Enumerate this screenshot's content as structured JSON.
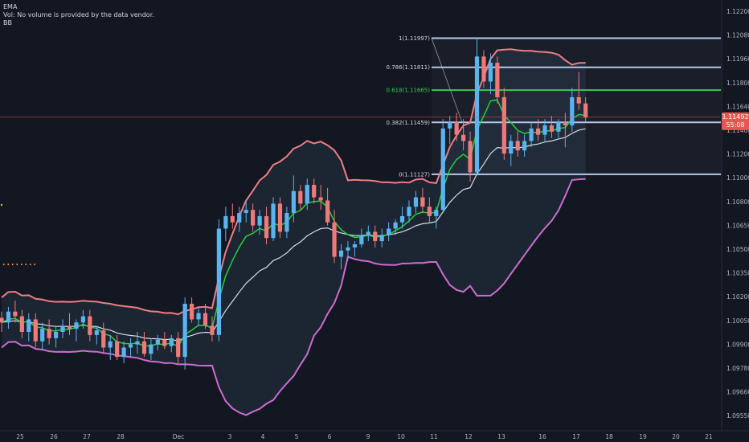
{
  "legend": {
    "ema": "EMA",
    "vol": "Vol: No volume is provided by the data vendor.",
    "bb": "BB"
  },
  "chart_data": {
    "type": "candlestick",
    "x_labels": [
      "25",
      "26",
      "27",
      "28",
      "Dec",
      "3",
      "4",
      "5",
      "6",
      "9",
      "10",
      "11",
      "12",
      "13",
      "16",
      "17",
      "18",
      "19",
      "20",
      "21"
    ],
    "y_ticks": [
      "1.12200",
      "1.12080",
      "1.11960",
      "1.11800",
      "1.11640",
      "1.11400",
      "1.11200",
      "1.11000",
      "1.10800",
      "1.10650",
      "1.10500",
      "1.10350",
      "1.10200",
      "1.10050",
      "1.09900",
      "1.09780",
      "1.09660",
      "1.09550"
    ],
    "ylim": [
      1.0955,
      1.122
    ],
    "current_price": "1.11492",
    "countdown": "55:08",
    "fibonacci": [
      {
        "level": "1(1.11997)",
        "price": 1.11997
      },
      {
        "level": "0.786(1.11811)",
        "price": 1.11811
      },
      {
        "level": "0.618(1.11665)",
        "price": 1.11665
      },
      {
        "level": "0.382(1.11459)",
        "price": 1.11459
      },
      {
        "level": "0(1.11127)",
        "price": 1.11127
      }
    ],
    "candles": [
      {
        "o": 1.1021,
        "h": 1.1025,
        "l": 1.1012,
        "c": 1.1018
      },
      {
        "o": 1.1018,
        "h": 1.1028,
        "l": 1.1014,
        "c": 1.1025
      },
      {
        "o": 1.1025,
        "h": 1.1032,
        "l": 1.1018,
        "c": 1.1022
      },
      {
        "o": 1.1022,
        "h": 1.1026,
        "l": 1.1008,
        "c": 1.1012
      },
      {
        "o": 1.1012,
        "h": 1.1024,
        "l": 1.1006,
        "c": 1.102
      },
      {
        "o": 1.102,
        "h": 1.1024,
        "l": 1.1002,
        "c": 1.1006
      },
      {
        "o": 1.1006,
        "h": 1.1018,
        "l": 1.1,
        "c": 1.1014
      },
      {
        "o": 1.1014,
        "h": 1.102,
        "l": 1.1004,
        "c": 1.1008
      },
      {
        "o": 1.1008,
        "h": 1.1016,
        "l": 1.1002,
        "c": 1.1012
      },
      {
        "o": 1.1012,
        "h": 1.102,
        "l": 1.1008,
        "c": 1.1016
      },
      {
        "o": 1.1016,
        "h": 1.1024,
        "l": 1.101,
        "c": 1.1014
      },
      {
        "o": 1.1014,
        "h": 1.102,
        "l": 1.1006,
        "c": 1.1018
      },
      {
        "o": 1.1018,
        "h": 1.1026,
        "l": 1.1014,
        "c": 1.1022
      },
      {
        "o": 1.1022,
        "h": 1.1026,
        "l": 1.1006,
        "c": 1.101
      },
      {
        "o": 1.101,
        "h": 1.1016,
        "l": 1.1004,
        "c": 1.1013
      },
      {
        "o": 1.1013,
        "h": 1.1018,
        "l": 1.0998,
        "c": 1.1002
      },
      {
        "o": 1.1002,
        "h": 1.101,
        "l": 1.0994,
        "c": 1.1006
      },
      {
        "o": 1.1006,
        "h": 1.101,
        "l": 1.0994,
        "c": 1.0996
      },
      {
        "o": 1.0996,
        "h": 1.1006,
        "l": 1.0992,
        "c": 1.1002
      },
      {
        "o": 1.1002,
        "h": 1.1008,
        "l": 1.0996,
        "c": 1.1004
      },
      {
        "o": 1.1004,
        "h": 1.1012,
        "l": 1.0998,
        "c": 1.1006
      },
      {
        "o": 1.1006,
        "h": 1.1012,
        "l": 1.0996,
        "c": 1.0998
      },
      {
        "o": 1.0998,
        "h": 1.1008,
        "l": 1.0994,
        "c": 1.1004
      },
      {
        "o": 1.1004,
        "h": 1.101,
        "l": 1.1,
        "c": 1.1007
      },
      {
        "o": 1.1007,
        "h": 1.1012,
        "l": 1.1001,
        "c": 1.1003
      },
      {
        "o": 1.1003,
        "h": 1.101,
        "l": 1.0999,
        "c": 1.1008
      },
      {
        "o": 1.1008,
        "h": 1.1012,
        "l": 1.0992,
        "c": 1.0996
      },
      {
        "o": 1.0996,
        "h": 1.1034,
        "l": 1.0988,
        "c": 1.103
      },
      {
        "o": 1.103,
        "h": 1.1034,
        "l": 1.1018,
        "c": 1.102
      },
      {
        "o": 1.102,
        "h": 1.1028,
        "l": 1.1016,
        "c": 1.1024
      },
      {
        "o": 1.1024,
        "h": 1.103,
        "l": 1.1014,
        "c": 1.1016
      },
      {
        "o": 1.1016,
        "h": 1.1022,
        "l": 1.1006,
        "c": 1.101
      },
      {
        "o": 1.101,
        "h": 1.1084,
        "l": 1.1006,
        "c": 1.1078
      },
      {
        "o": 1.1078,
        "h": 1.1092,
        "l": 1.107,
        "c": 1.1086
      },
      {
        "o": 1.1086,
        "h": 1.1094,
        "l": 1.1078,
        "c": 1.1082
      },
      {
        "o": 1.1082,
        "h": 1.1092,
        "l": 1.1076,
        "c": 1.1088
      },
      {
        "o": 1.1088,
        "h": 1.1096,
        "l": 1.1082,
        "c": 1.109
      },
      {
        "o": 1.109,
        "h": 1.1094,
        "l": 1.1076,
        "c": 1.108
      },
      {
        "o": 1.108,
        "h": 1.109,
        "l": 1.1074,
        "c": 1.1086
      },
      {
        "o": 1.1086,
        "h": 1.1092,
        "l": 1.1068,
        "c": 1.1072
      },
      {
        "o": 1.1072,
        "h": 1.1098,
        "l": 1.107,
        "c": 1.1094
      },
      {
        "o": 1.1094,
        "h": 1.1098,
        "l": 1.1072,
        "c": 1.1076
      },
      {
        "o": 1.1076,
        "h": 1.1092,
        "l": 1.1072,
        "c": 1.1088
      },
      {
        "o": 1.1088,
        "h": 1.1112,
        "l": 1.1082,
        "c": 1.1102
      },
      {
        "o": 1.1102,
        "h": 1.1106,
        "l": 1.109,
        "c": 1.1094
      },
      {
        "o": 1.1094,
        "h": 1.111,
        "l": 1.109,
        "c": 1.1106
      },
      {
        "o": 1.1106,
        "h": 1.111,
        "l": 1.1094,
        "c": 1.1098
      },
      {
        "o": 1.1098,
        "h": 1.1106,
        "l": 1.109,
        "c": 1.1096
      },
      {
        "o": 1.1096,
        "h": 1.1104,
        "l": 1.108,
        "c": 1.1082
      },
      {
        "o": 1.1082,
        "h": 1.109,
        "l": 1.1056,
        "c": 1.106
      },
      {
        "o": 1.106,
        "h": 1.1068,
        "l": 1.1052,
        "c": 1.1064
      },
      {
        "o": 1.1064,
        "h": 1.107,
        "l": 1.1058,
        "c": 1.1066
      },
      {
        "o": 1.1066,
        "h": 1.107,
        "l": 1.106,
        "c": 1.1068
      },
      {
        "o": 1.1068,
        "h": 1.1078,
        "l": 1.1066,
        "c": 1.1074
      },
      {
        "o": 1.1074,
        "h": 1.108,
        "l": 1.107,
        "c": 1.1076
      },
      {
        "o": 1.1076,
        "h": 1.108,
        "l": 1.1066,
        "c": 1.107
      },
      {
        "o": 1.107,
        "h": 1.1078,
        "l": 1.1066,
        "c": 1.1074
      },
      {
        "o": 1.1074,
        "h": 1.1082,
        "l": 1.107,
        "c": 1.1078
      },
      {
        "o": 1.1078,
        "h": 1.1084,
        "l": 1.1074,
        "c": 1.1082
      },
      {
        "o": 1.1082,
        "h": 1.1092,
        "l": 1.1078,
        "c": 1.1086
      },
      {
        "o": 1.1086,
        "h": 1.1096,
        "l": 1.1082,
        "c": 1.1092
      },
      {
        "o": 1.1092,
        "h": 1.1102,
        "l": 1.1088,
        "c": 1.1098
      },
      {
        "o": 1.1098,
        "h": 1.1104,
        "l": 1.1088,
        "c": 1.1092
      },
      {
        "o": 1.1092,
        "h": 1.1098,
        "l": 1.1082,
        "c": 1.1086
      },
      {
        "o": 1.1086,
        "h": 1.1092,
        "l": 1.1078,
        "c": 1.109
      },
      {
        "o": 1.109,
        "h": 1.1148,
        "l": 1.1088,
        "c": 1.1142
      },
      {
        "o": 1.1142,
        "h": 1.115,
        "l": 1.1132,
        "c": 1.1146
      },
      {
        "o": 1.1146,
        "h": 1.1152,
        "l": 1.1134,
        "c": 1.1138
      },
      {
        "o": 1.1138,
        "h": 1.1148,
        "l": 1.1128,
        "c": 1.1134
      },
      {
        "o": 1.1134,
        "h": 1.114,
        "l": 1.1108,
        "c": 1.1114
      },
      {
        "o": 1.1114,
        "h": 1.12,
        "l": 1.1112,
        "c": 1.1188
      },
      {
        "o": 1.1188,
        "h": 1.1192,
        "l": 1.1168,
        "c": 1.1172
      },
      {
        "o": 1.1172,
        "h": 1.119,
        "l": 1.1164,
        "c": 1.1184
      },
      {
        "o": 1.1184,
        "h": 1.1188,
        "l": 1.1158,
        "c": 1.1162
      },
      {
        "o": 1.1162,
        "h": 1.1168,
        "l": 1.1122,
        "c": 1.1126
      },
      {
        "o": 1.1126,
        "h": 1.1138,
        "l": 1.1118,
        "c": 1.1134
      },
      {
        "o": 1.1134,
        "h": 1.114,
        "l": 1.1124,
        "c": 1.1128
      },
      {
        "o": 1.1128,
        "h": 1.1138,
        "l": 1.1124,
        "c": 1.1134
      },
      {
        "o": 1.1134,
        "h": 1.1146,
        "l": 1.113,
        "c": 1.1142
      },
      {
        "o": 1.1142,
        "h": 1.1148,
        "l": 1.1134,
        "c": 1.1138
      },
      {
        "o": 1.1138,
        "h": 1.1148,
        "l": 1.1134,
        "c": 1.1144
      },
      {
        "o": 1.1144,
        "h": 1.115,
        "l": 1.1136,
        "c": 1.114
      },
      {
        "o": 1.114,
        "h": 1.1148,
        "l": 1.1136,
        "c": 1.1146
      },
      {
        "o": 1.1146,
        "h": 1.1152,
        "l": 1.113,
        "c": 1.1144
      },
      {
        "o": 1.1144,
        "h": 1.1168,
        "l": 1.114,
        "c": 1.1162
      },
      {
        "o": 1.1162,
        "h": 1.1178,
        "l": 1.1154,
        "c": 1.1158
      },
      {
        "o": 1.1158,
        "h": 1.1162,
        "l": 1.1146,
        "c": 1.1149
      }
    ]
  },
  "colors": {
    "background": "#131722",
    "up": "#5ab4f0",
    "down": "#ef7a7a",
    "ema_fast": "#22d13a",
    "ema_slow": "#d8dde6",
    "bb_upper": "#f07c84",
    "bb_lower": "#cc6cd0",
    "fib_line": "#b6c8ec",
    "fib_618": "#2fd04c",
    "price_badge": "#ef5350"
  }
}
